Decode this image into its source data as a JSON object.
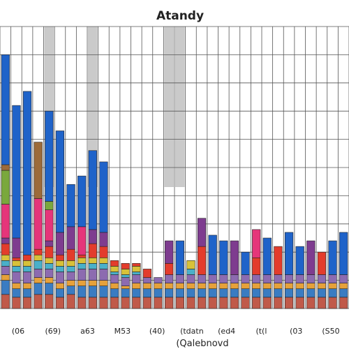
{
  "chart_data": {
    "type": "bar",
    "stacked": true,
    "title": "Atandy",
    "xlabel": "(Qalebnovd",
    "ylabel": "",
    "ylim": [
      0,
      100
    ],
    "grid": true,
    "legend": "none",
    "x_tick_labels": [
      "(06",
      "(69)",
      "a63",
      "M53",
      "(40)",
      "(tdatn",
      "(ed4",
      "(t(l",
      "(03",
      "(S50"
    ],
    "bars": [
      {
        "series_values": [
          5,
          5,
          2,
          3,
          2,
          2,
          4,
          2,
          12,
          12,
          2,
          39
        ]
      },
      {
        "series_values": [
          4,
          3,
          2,
          4,
          2,
          2,
          1,
          7,
          0,
          0,
          0,
          47
        ]
      },
      {
        "series_values": [
          4,
          3,
          2,
          4,
          2,
          2,
          2,
          0,
          0,
          0,
          0,
          58
        ]
      },
      {
        "series_values": [
          5,
          4,
          2,
          3,
          3,
          2,
          2,
          0,
          18,
          0,
          20,
          0
        ]
      },
      {
        "series_values": [
          5,
          4,
          2,
          3,
          2,
          2,
          4,
          2,
          11,
          3,
          0,
          32
        ]
      },
      {
        "series_values": [
          4,
          3,
          2,
          4,
          2,
          2,
          2,
          8,
          0,
          0,
          0,
          36
        ]
      },
      {
        "series_values": [
          5,
          3,
          2,
          3,
          2,
          2,
          4,
          8,
          0,
          0,
          0,
          15
        ]
      },
      {
        "series_values": [
          4,
          4,
          2,
          4,
          2,
          2,
          1,
          0,
          10,
          0,
          0,
          18
        ]
      },
      {
        "series_values": [
          4,
          4,
          2,
          4,
          2,
          2,
          5,
          5,
          0,
          0,
          0,
          28
        ]
      },
      {
        "series_values": [
          4,
          4,
          2,
          4,
          2,
          2,
          4,
          5,
          0,
          0,
          0,
          25
        ]
      },
      {
        "series_values": [
          4,
          3,
          2,
          3,
          1,
          2,
          2,
          0,
          0,
          0,
          0,
          0
        ]
      },
      {
        "series_values": [
          4,
          3,
          1,
          3,
          1,
          2,
          2,
          0,
          0,
          0,
          0,
          0
        ]
      },
      {
        "series_values": [
          4,
          3,
          2,
          3,
          1,
          2,
          1,
          0,
          0,
          0,
          0,
          0
        ]
      },
      {
        "series_values": [
          4,
          3,
          2,
          2,
          0,
          0,
          3,
          0,
          0,
          0,
          0,
          0
        ]
      },
      {
        "series_values": [
          4,
          3,
          2,
          2,
          0,
          0,
          0,
          0,
          0,
          0,
          0,
          0
        ]
      },
      {
        "series_values": [
          4,
          3,
          2,
          3,
          0,
          0,
          4,
          8,
          0,
          0,
          0,
          0
        ]
      },
      {
        "series_values": [
          4,
          3,
          2,
          3,
          0,
          0,
          0,
          0,
          0,
          0,
          0,
          12
        ]
      },
      {
        "series_values": [
          4,
          3,
          2,
          3,
          2,
          3,
          0,
          0,
          0,
          0,
          0,
          0
        ]
      },
      {
        "series_values": [
          4,
          3,
          2,
          3,
          0,
          0,
          10,
          10,
          0,
          0,
          0,
          0
        ]
      },
      {
        "series_values": [
          4,
          3,
          2,
          3,
          0,
          0,
          0,
          0,
          0,
          0,
          0,
          14
        ]
      },
      {
        "series_values": [
          4,
          3,
          2,
          3,
          0,
          0,
          0,
          0,
          0,
          0,
          0,
          12
        ]
      },
      {
        "series_values": [
          4,
          3,
          2,
          3,
          0,
          0,
          0,
          12,
          0,
          0,
          0,
          0
        ]
      },
      {
        "series_values": [
          4,
          3,
          2,
          3,
          0,
          0,
          0,
          0,
          0,
          0,
          0,
          8
        ]
      },
      {
        "series_values": [
          4,
          3,
          2,
          3,
          0,
          0,
          6,
          0,
          10,
          0,
          0,
          0
        ]
      },
      {
        "series_values": [
          4,
          3,
          2,
          3,
          0,
          0,
          0,
          0,
          0,
          0,
          0,
          13
        ]
      },
      {
        "series_values": [
          4,
          3,
          2,
          3,
          0,
          0,
          10,
          0,
          0,
          0,
          0,
          0
        ]
      },
      {
        "series_values": [
          4,
          3,
          2,
          3,
          0,
          0,
          0,
          0,
          0,
          0,
          0,
          15
        ]
      },
      {
        "series_values": [
          4,
          3,
          2,
          3,
          0,
          0,
          0,
          0,
          0,
          0,
          0,
          10
        ]
      },
      {
        "series_values": [
          4,
          3,
          2,
          3,
          0,
          0,
          0,
          12,
          0,
          0,
          0,
          0
        ]
      },
      {
        "series_values": [
          4,
          3,
          2,
          3,
          0,
          0,
          8,
          0,
          0,
          0,
          0,
          0
        ]
      },
      {
        "series_values": [
          4,
          3,
          2,
          3,
          0,
          0,
          0,
          0,
          0,
          0,
          0,
          12
        ]
      },
      {
        "series_values": [
          4,
          3,
          2,
          3,
          0,
          0,
          0,
          0,
          0,
          0,
          0,
          15
        ]
      }
    ],
    "series_colors": [
      "#c05a4a",
      "#3a7cc2",
      "#e6a13a",
      "#8c6bb0",
      "#4ab0c9",
      "#d8c13a",
      "#e33c2c",
      "#7e3c8f",
      "#e5357a",
      "#7aa83d",
      "#9c6b3a",
      "#1f63c9"
    ],
    "highlight_columns": [
      4,
      8,
      15,
      16
    ],
    "highlight_color": "#bdbdbd"
  }
}
